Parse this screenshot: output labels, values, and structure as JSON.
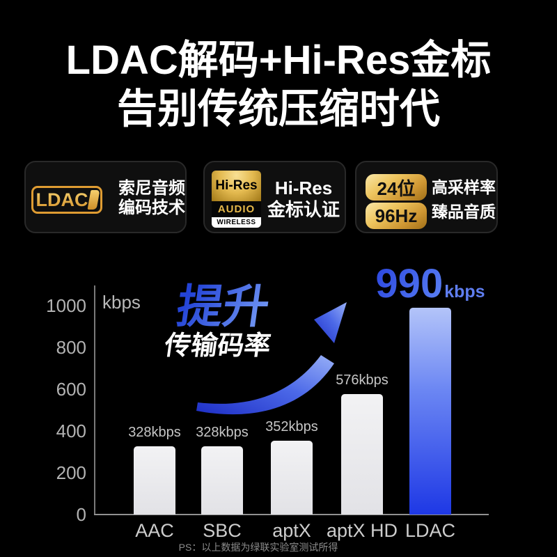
{
  "title": {
    "line1": "LDAC解码+Hi-Res金标",
    "line2": "告别传统压缩时代"
  },
  "cards": [
    {
      "logo_text": "LDAC",
      "line1": "索尼音频",
      "line2": "编码技术"
    },
    {
      "logo_top": "Hi-Res",
      "logo_mid": "AUDIO",
      "logo_bottom": "WIRELESS",
      "line1": "Hi-Res",
      "line2": "金标认证"
    },
    {
      "badge1": "24位",
      "badge2": "96Hz",
      "line1": "高采样率",
      "line2": "臻品音质"
    }
  ],
  "chart_data": {
    "type": "bar",
    "categories": [
      "AAC",
      "SBC",
      "aptX",
      "aptX HD",
      "LDAC"
    ],
    "values": [
      328,
      328,
      352,
      576,
      990
    ],
    "bar_labels": [
      "328kbps",
      "328kbps",
      "352kbps",
      "576kbps",
      "990kbps"
    ],
    "unit": "kbps",
    "ylabel": "kbps",
    "ylim": [
      0,
      1000
    ],
    "y_ticks": [
      0,
      200,
      400,
      600,
      800,
      1000
    ],
    "grid": false,
    "legend": false,
    "highlight_index": 4,
    "highlight_label": {
      "value": "990",
      "unit": "kbps"
    },
    "annotation": {
      "line1": "提升",
      "line2": "传输码率",
      "arrow": "up-right-swoosh"
    },
    "bar_color": "#e9e9eb",
    "highlight_color": "#1d39e6"
  },
  "footnote": "PS：以上数据为绿联实验室测试所得",
  "colors": {
    "background": "#000000",
    "accent_blue": "#2e55e8",
    "gold": "#d9a53c",
    "text_primary": "#ffffff",
    "text_muted": "#b3b3b3"
  }
}
